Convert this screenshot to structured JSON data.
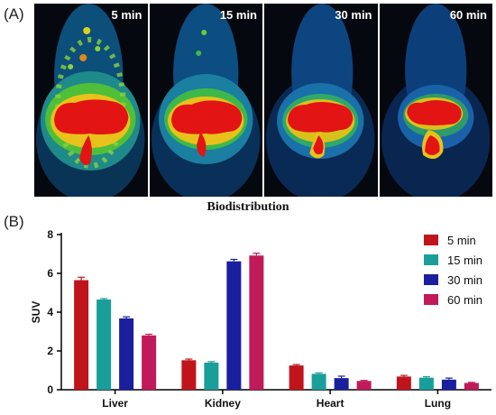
{
  "panels": {
    "a_label": "(A)",
    "b_label": "(B)"
  },
  "scans": [
    {
      "time": "5 min"
    },
    {
      "time": "15 min"
    },
    {
      "time": "30 min"
    },
    {
      "time": "60 min"
    }
  ],
  "chart_data": {
    "type": "bar",
    "title": "Biodistribution",
    "xlabel": "",
    "ylabel": "SUV",
    "ylim": [
      0,
      8
    ],
    "yticks": [
      "0",
      "2",
      "4",
      "6",
      "8"
    ],
    "categories": [
      "Liver",
      "Kidney",
      "Heart",
      "Lung"
    ],
    "error_bars": true,
    "legend_position": "top-right",
    "grid": false,
    "series": [
      {
        "name": "5 min",
        "color": "#c0141c",
        "values": [
          5.65,
          1.52,
          1.25,
          0.68
        ],
        "errors": [
          0.15,
          0.06,
          0.05,
          0.06
        ]
      },
      {
        "name": "15 min",
        "color": "#1a9e9a",
        "values": [
          4.65,
          1.4,
          0.82,
          0.62
        ],
        "errors": [
          0.05,
          0.05,
          0.05,
          0.05
        ]
      },
      {
        "name": "30 min",
        "color": "#1a1f9e",
        "values": [
          3.68,
          6.62,
          0.6,
          0.52
        ],
        "errors": [
          0.08,
          0.1,
          0.1,
          0.08
        ]
      },
      {
        "name": "60 min",
        "color": "#c01a5a",
        "values": [
          2.8,
          6.92,
          0.45,
          0.35
        ],
        "errors": [
          0.06,
          0.12,
          0.03,
          0.03
        ]
      }
    ]
  }
}
